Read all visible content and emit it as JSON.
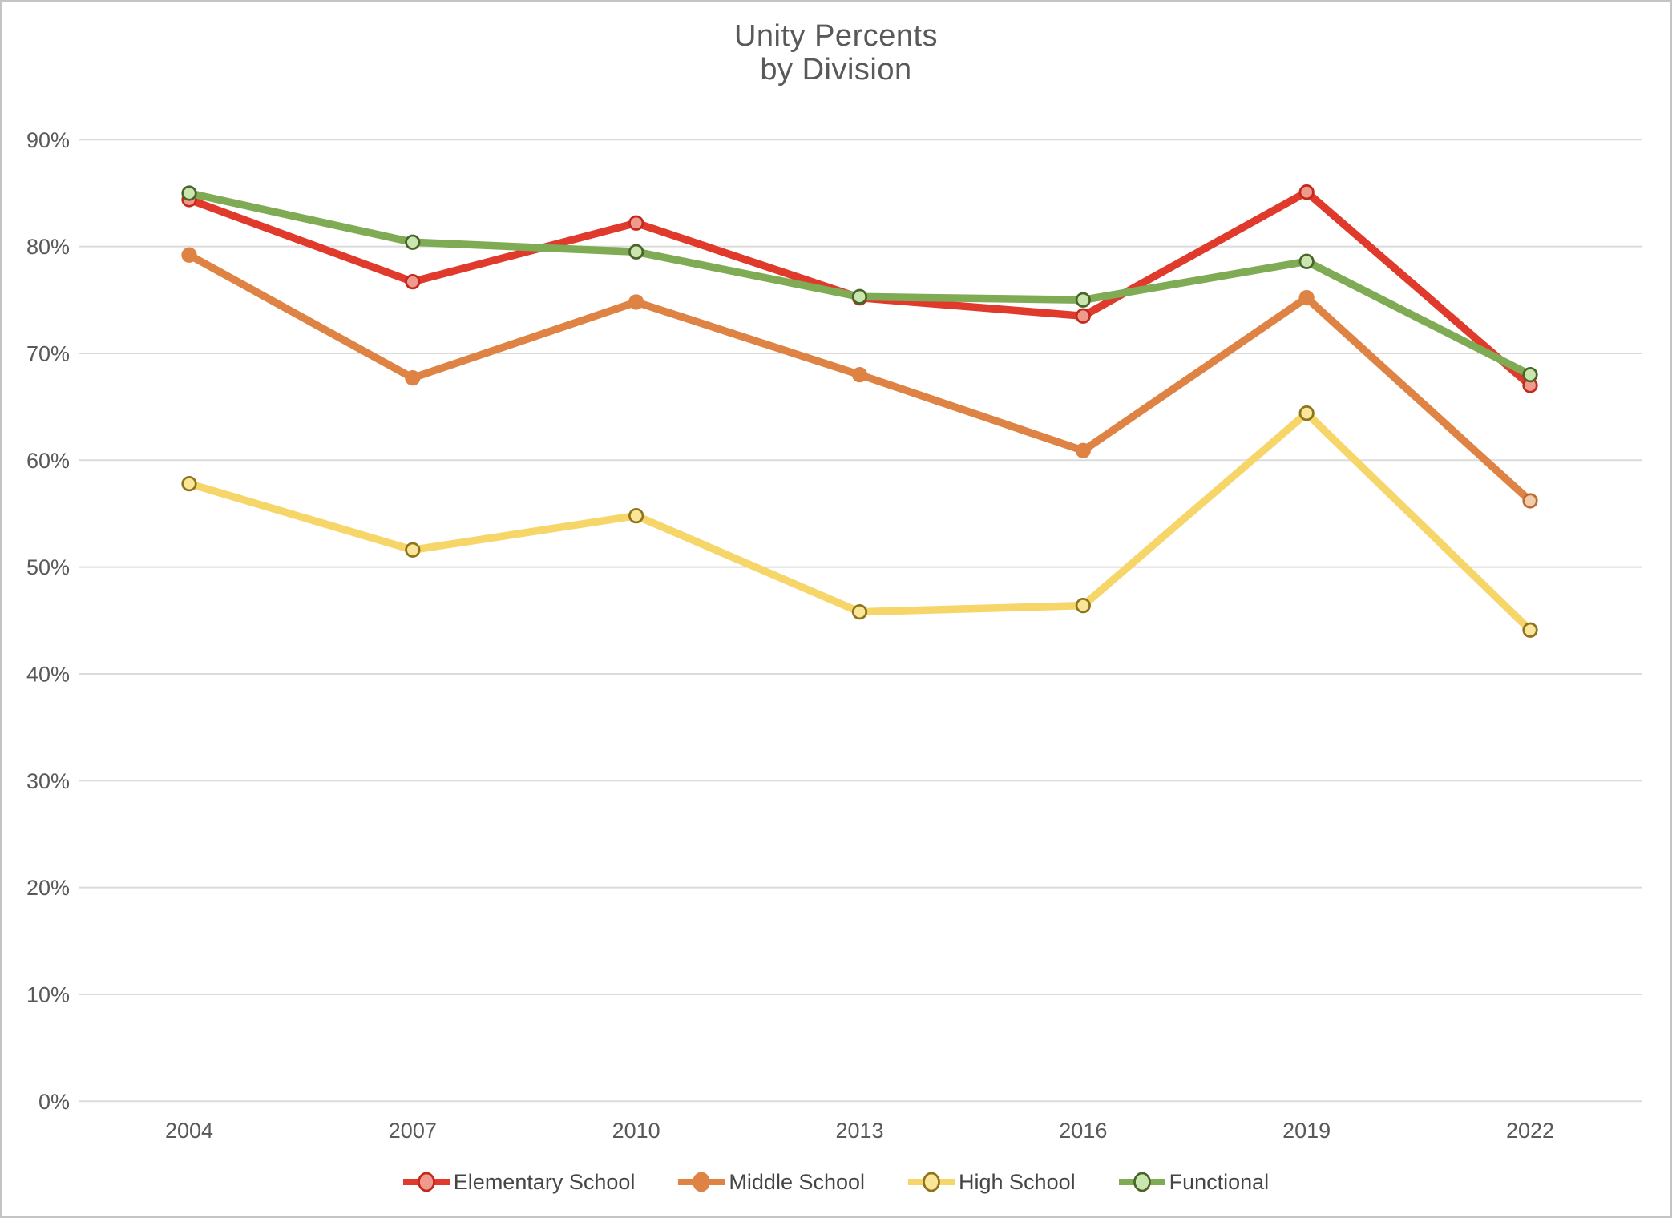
{
  "title": {
    "line1": "Unity Percents",
    "line2": "by Division"
  },
  "styles": {
    "title_color": "#595959",
    "axis_label_color": "#595959",
    "gridline_color": "#dbdbdb",
    "page_border_color": "#c4c4c4",
    "background": "#ffffff"
  },
  "chart_data": {
    "type": "line",
    "title": "Unity Percents by Division",
    "categories": [
      "2004",
      "2007",
      "2010",
      "2013",
      "2016",
      "2019",
      "2022"
    ],
    "series": [
      {
        "name": "Elementary School",
        "color": "#df3a2b",
        "marker_fill": "#f09a8e",
        "marker_stroke": "#c5281c",
        "values": [
          84.4,
          76.7,
          82.2,
          75.2,
          73.5,
          85.1,
          67.0
        ]
      },
      {
        "name": "Middle School",
        "color": "#de8344",
        "marker_fill": "#de8344",
        "marker_stroke": "#de8344",
        "values": [
          79.2,
          67.7,
          74.8,
          68.0,
          60.9,
          75.2,
          56.2
        ],
        "marker_overrides": {
          "6": {
            "fill": "#f3caaa",
            "stroke": "#bd6d33"
          }
        }
      },
      {
        "name": "High School",
        "color": "#f6d569",
        "marker_fill": "#fae698",
        "marker_stroke": "#8e741a",
        "values": [
          57.8,
          51.6,
          54.8,
          45.8,
          46.4,
          64.4,
          44.1
        ]
      },
      {
        "name": "Functional",
        "color": "#7fab55",
        "marker_fill": "#cbe5af",
        "marker_stroke": "#49652a",
        "values": [
          85.0,
          80.4,
          79.5,
          75.3,
          75.0,
          78.6,
          68.0
        ]
      }
    ],
    "yticks": [
      "0%",
      "10%",
      "20%",
      "30%",
      "40%",
      "50%",
      "60%",
      "70%",
      "80%",
      "90%"
    ],
    "ylim": [
      0,
      90
    ],
    "xlabel": "",
    "ylabel": "",
    "grid": true,
    "legend_position": "bottom"
  }
}
